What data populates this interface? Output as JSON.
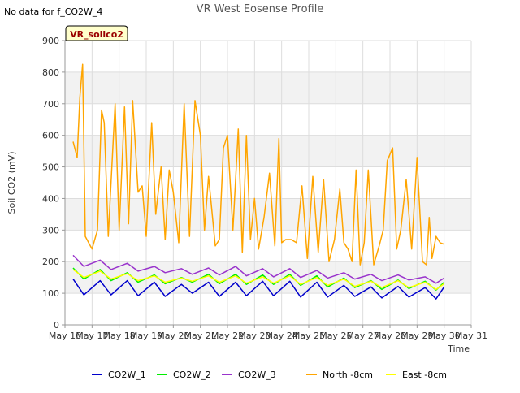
{
  "chart_data": {
    "type": "line",
    "title": "VR West Eosense Profile",
    "corner_note": "No data for f_CO2W_4",
    "site_badge": "VR_soilco2",
    "xlabel": "Time",
    "ylabel": "Soil CO2 (mV)",
    "xlim": [
      16,
      31
    ],
    "ylim": [
      0,
      900
    ],
    "yticks": [
      0,
      100,
      200,
      300,
      400,
      500,
      600,
      700,
      800,
      900
    ],
    "xticks": [
      {
        "day": 16,
        "label": "May 16"
      },
      {
        "day": 17,
        "label": "May 17"
      },
      {
        "day": 18,
        "label": "May 18"
      },
      {
        "day": 19,
        "label": "May 19"
      },
      {
        "day": 20,
        "label": "May 20"
      },
      {
        "day": 21,
        "label": "May 21"
      },
      {
        "day": 22,
        "label": "May 22"
      },
      {
        "day": 23,
        "label": "May 23"
      },
      {
        "day": 24,
        "label": "May 24"
      },
      {
        "day": 25,
        "label": "May 25"
      },
      {
        "day": 26,
        "label": "May 26"
      },
      {
        "day": 27,
        "label": "May 27"
      },
      {
        "day": 28,
        "label": "May 28"
      },
      {
        "day": 29,
        "label": "May 29"
      },
      {
        "day": 30,
        "label": "May 30"
      },
      {
        "day": 31,
        "label": "May 31"
      }
    ],
    "grid": true,
    "alternating_bands": true,
    "legend_position": "bottom",
    "series": [
      {
        "name": "CO2W_1",
        "color": "#0000cc",
        "x": [
          16.3,
          16.7,
          17.3,
          17.7,
          18.3,
          18.7,
          19.3,
          19.7,
          20.3,
          20.7,
          21.3,
          21.7,
          22.3,
          22.7,
          23.3,
          23.7,
          24.3,
          24.7,
          25.3,
          25.7,
          26.3,
          26.7,
          27.3,
          27.7,
          28.3,
          28.7,
          29.3,
          29.7,
          30.0
        ],
        "y": [
          145,
          95,
          140,
          95,
          140,
          92,
          135,
          90,
          128,
          100,
          135,
          90,
          135,
          92,
          138,
          92,
          138,
          88,
          135,
          88,
          125,
          90,
          120,
          85,
          122,
          88,
          118,
          82,
          120
        ]
      },
      {
        "name": "CO2W_2",
        "color": "#00ee00",
        "x": [
          16.3,
          16.7,
          17.3,
          17.7,
          18.3,
          18.7,
          19.3,
          19.7,
          20.3,
          20.7,
          21.3,
          21.7,
          22.3,
          22.7,
          23.3,
          23.7,
          24.3,
          24.7,
          25.3,
          25.7,
          26.3,
          26.7,
          27.3,
          27.7,
          28.3,
          28.7,
          29.3,
          29.7,
          30.0
        ],
        "y": [
          180,
          145,
          175,
          140,
          165,
          135,
          158,
          130,
          150,
          135,
          160,
          130,
          160,
          128,
          158,
          128,
          160,
          125,
          155,
          120,
          148,
          118,
          140,
          112,
          142,
          115,
          138,
          110,
          135
        ]
      },
      {
        "name": "CO2W_3",
        "color": "#9933cc",
        "x": [
          16.3,
          16.7,
          17.3,
          17.7,
          18.3,
          18.7,
          19.3,
          19.7,
          20.3,
          20.7,
          21.3,
          21.7,
          22.3,
          22.7,
          23.3,
          23.7,
          24.3,
          24.7,
          25.3,
          25.7,
          26.3,
          26.7,
          27.3,
          27.7,
          28.3,
          28.7,
          29.3,
          29.7,
          30.0
        ],
        "y": [
          220,
          185,
          205,
          175,
          195,
          170,
          185,
          165,
          178,
          160,
          180,
          158,
          185,
          155,
          178,
          152,
          178,
          150,
          172,
          148,
          165,
          145,
          160,
          140,
          158,
          142,
          152,
          132,
          148
        ]
      },
      {
        "name": "North -8cm",
        "color": "#ffa500",
        "x": [
          16.3,
          16.45,
          16.55,
          16.65,
          16.75,
          17.0,
          17.2,
          17.35,
          17.45,
          17.6,
          17.85,
          18.0,
          18.2,
          18.35,
          18.5,
          18.7,
          18.85,
          19.0,
          19.2,
          19.35,
          19.55,
          19.7,
          19.85,
          20.0,
          20.2,
          20.4,
          20.6,
          20.8,
          21.0,
          21.15,
          21.3,
          21.55,
          21.7,
          21.85,
          22.0,
          22.2,
          22.4,
          22.55,
          22.7,
          22.85,
          23.0,
          23.15,
          23.35,
          23.55,
          23.75,
          23.9,
          24.0,
          24.15,
          24.35,
          24.55,
          24.75,
          24.95,
          25.15,
          25.35,
          25.55,
          25.75,
          25.95,
          26.15,
          26.3,
          26.45,
          26.6,
          26.75,
          26.9,
          27.05,
          27.2,
          27.4,
          27.6,
          27.75,
          27.9,
          28.1,
          28.25,
          28.4,
          28.6,
          28.8,
          29.0,
          29.2,
          29.35,
          29.45,
          29.55,
          29.7,
          29.85,
          30.0
        ],
        "y": [
          580,
          530,
          720,
          825,
          280,
          240,
          300,
          680,
          640,
          280,
          700,
          300,
          690,
          320,
          710,
          420,
          440,
          280,
          640,
          350,
          500,
          270,
          490,
          420,
          260,
          700,
          280,
          710,
          600,
          300,
          470,
          250,
          270,
          560,
          600,
          300,
          620,
          230,
          600,
          270,
          400,
          240,
          340,
          480,
          250,
          590,
          260,
          270,
          270,
          260,
          440,
          210,
          470,
          230,
          460,
          200,
          270,
          430,
          260,
          240,
          200,
          490,
          190,
          260,
          490,
          190,
          250,
          300,
          520,
          560,
          240,
          300,
          460,
          240,
          530,
          200,
          190,
          340,
          210,
          280,
          260,
          255
        ]
      },
      {
        "name": "East -8cm",
        "color": "#ffff00",
        "x": [
          16.3,
          16.7,
          17.3,
          17.7,
          18.3,
          18.7,
          19.3,
          19.7,
          20.3,
          20.7,
          21.3,
          21.7,
          22.3,
          22.7,
          23.3,
          23.7,
          24.3,
          24.7,
          25.3,
          25.7,
          26.3,
          26.7,
          27.3,
          27.7,
          28.3,
          28.7,
          29.3,
          29.7,
          30.0
        ],
        "y": [
          175,
          150,
          170,
          145,
          162,
          140,
          155,
          135,
          148,
          138,
          155,
          135,
          155,
          132,
          152,
          132,
          155,
          128,
          150,
          125,
          145,
          122,
          138,
          118,
          140,
          118,
          135,
          112,
          130
        ]
      }
    ]
  }
}
